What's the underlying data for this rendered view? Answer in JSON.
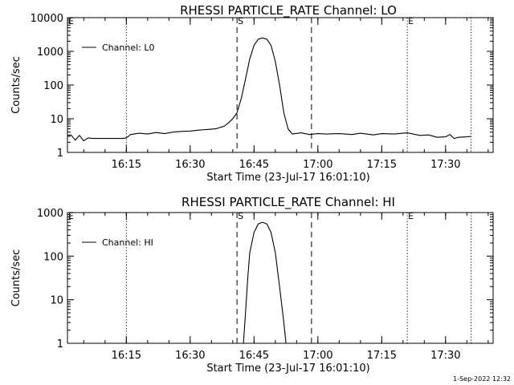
{
  "chart_data": [
    {
      "type": "line",
      "title": "RHESSI PARTICLE_RATE Channel: LO",
      "xlabel": "Start Time (23-Jul-17 16:01:10)",
      "ylabel": "Counts/sec",
      "y_scale": "log",
      "ylim": [
        1,
        10000
      ],
      "y_ticks": [
        1,
        10,
        100,
        1000,
        10000
      ],
      "y_tick_labels": [
        "1",
        "10",
        "100",
        "1000",
        "10000"
      ],
      "xlim": [
        "16:01:10",
        "17:41:10"
      ],
      "x_ticks": [
        "16:15",
        "16:30",
        "16:45",
        "17:00",
        "17:15",
        "17:30"
      ],
      "legend": {
        "position": "top-left",
        "entries": [
          "Channel: L0"
        ]
      },
      "markers": [
        {
          "time": "16:15:00",
          "style": "dotted",
          "label": ""
        },
        {
          "time": "16:41:00",
          "style": "dashed",
          "label": "S"
        },
        {
          "time": "16:58:30",
          "style": "dashed",
          "label": ""
        },
        {
          "time": "17:21:00",
          "style": "dotted",
          "label": "E"
        },
        {
          "time": "17:36:00",
          "style": "dotted",
          "label": ""
        }
      ],
      "corner_label": "E",
      "series": [
        {
          "name": "Channel: L0",
          "points": [
            [
              "16:01:10",
              3.2
            ],
            [
              "16:02:00",
              3.3
            ],
            [
              "16:03:00",
              2.3
            ],
            [
              "16:04:00",
              3.2
            ],
            [
              "16:05:00",
              2.2
            ],
            [
              "16:06:00",
              2.7
            ],
            [
              "16:07:00",
              2.6
            ],
            [
              "16:09:00",
              2.6
            ],
            [
              "16:12:00",
              2.6
            ],
            [
              "16:14:00",
              2.6
            ],
            [
              "16:15:00",
              2.7
            ],
            [
              "16:16:00",
              3.4
            ],
            [
              "16:18:00",
              3.7
            ],
            [
              "16:20:00",
              3.5
            ],
            [
              "16:22:00",
              3.9
            ],
            [
              "16:24:00",
              3.6
            ],
            [
              "16:26:00",
              4.0
            ],
            [
              "16:28:00",
              4.2
            ],
            [
              "16:30:00",
              4.3
            ],
            [
              "16:32:00",
              4.6
            ],
            [
              "16:34:00",
              4.8
            ],
            [
              "16:36:00",
              5.0
            ],
            [
              "16:38:00",
              6.0
            ],
            [
              "16:39:00",
              7.5
            ],
            [
              "16:40:00",
              10
            ],
            [
              "16:41:00",
              15
            ],
            [
              "16:42:00",
              40
            ],
            [
              "16:43:00",
              150
            ],
            [
              "16:44:00",
              600
            ],
            [
              "16:45:00",
              1500
            ],
            [
              "16:46:00",
              2300
            ],
            [
              "16:47:00",
              2500
            ],
            [
              "16:48:00",
              2300
            ],
            [
              "16:49:00",
              1500
            ],
            [
              "16:50:00",
              500
            ],
            [
              "16:51:00",
              100
            ],
            [
              "16:52:00",
              15
            ],
            [
              "16:53:00",
              5
            ],
            [
              "16:54:00",
              3.5
            ],
            [
              "16:56:00",
              3.8
            ],
            [
              "16:58:00",
              3.4
            ],
            [
              "17:00:00",
              3.6
            ],
            [
              "17:02:00",
              3.5
            ],
            [
              "17:05:00",
              3.6
            ],
            [
              "17:08:00",
              3.4
            ],
            [
              "17:10:00",
              3.7
            ],
            [
              "17:13:00",
              3.3
            ],
            [
              "17:15:00",
              3.6
            ],
            [
              "17:18:00",
              3.5
            ],
            [
              "17:21:00",
              3.8
            ],
            [
              "17:24:00",
              3.2
            ],
            [
              "17:26:00",
              3.3
            ],
            [
              "17:28:00",
              2.8
            ],
            [
              "17:30:00",
              2.9
            ],
            [
              "17:31:00",
              3.4
            ],
            [
              "17:32:00",
              2.6
            ],
            [
              "17:33:00",
              2.8
            ],
            [
              "17:35:00",
              2.9
            ],
            [
              "17:36:00",
              3.0
            ]
          ]
        }
      ]
    },
    {
      "type": "line",
      "title": "RHESSI PARTICLE_RATE Channel: HI",
      "xlabel": "Start Time (23-Jul-17 16:01:10)",
      "ylabel": "Counts/sec",
      "y_scale": "log",
      "ylim": [
        1,
        1000
      ],
      "y_ticks": [
        1,
        10,
        100,
        1000
      ],
      "y_tick_labels": [
        "1",
        "10",
        "100",
        "1000"
      ],
      "xlim": [
        "16:01:10",
        "17:41:10"
      ],
      "x_ticks": [
        "16:15",
        "16:30",
        "16:45",
        "17:00",
        "17:15",
        "17:30"
      ],
      "legend": {
        "position": "top-left",
        "entries": [
          "Channel: HI"
        ]
      },
      "markers": [
        {
          "time": "16:15:00",
          "style": "dotted",
          "label": ""
        },
        {
          "time": "16:41:00",
          "style": "dashed",
          "label": "S"
        },
        {
          "time": "16:58:30",
          "style": "dashed",
          "label": ""
        },
        {
          "time": "17:21:00",
          "style": "dotted",
          "label": "E"
        },
        {
          "time": "17:36:00",
          "style": "dotted",
          "label": ""
        }
      ],
      "corner_label": "E",
      "series": [
        {
          "name": "Channel: HI",
          "points": [
            [
              "16:42:30",
              1
            ],
            [
              "16:43:00",
              5
            ],
            [
              "16:43:30",
              30
            ],
            [
              "16:44:00",
              120
            ],
            [
              "16:45:00",
              350
            ],
            [
              "16:46:00",
              550
            ],
            [
              "16:47:00",
              600
            ],
            [
              "16:48:00",
              550
            ],
            [
              "16:49:00",
              350
            ],
            [
              "16:50:00",
              120
            ],
            [
              "16:51:00",
              20
            ],
            [
              "16:52:00",
              3
            ],
            [
              "16:52:30",
              1
            ]
          ]
        }
      ]
    }
  ],
  "footer": {
    "timestamp": "1-Sep-2022 12:32"
  }
}
